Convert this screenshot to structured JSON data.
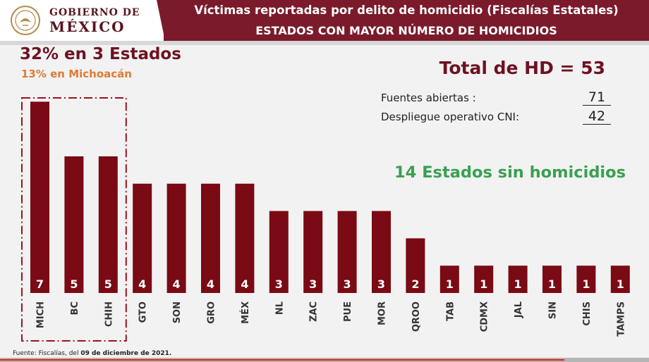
{
  "header": {
    "logo_line1": "GOBIERNO DE",
    "logo_line2": "MÉXICO",
    "title1": "Víctimas reportadas por delito de homicidio (Fiscalías Estatales)",
    "title2": "ESTADOS CON MAYOR NÚMERO DE HOMICIDIOS"
  },
  "summary": {
    "headline": "32% en 3 Estados",
    "subhead": "13% en Michoacán",
    "total": "Total de HD = 53",
    "sources": [
      {
        "label": "Fuentes abiertas :",
        "value": "71"
      },
      {
        "label": "Despliegue operativo CNI:",
        "value": "42"
      }
    ],
    "no_homicides": "14 Estados sin homicidios"
  },
  "chart_data": {
    "type": "bar",
    "categories": [
      "MICH",
      "BC",
      "CHIH",
      "GTO",
      "SON",
      "GRO",
      "MÉX",
      "NL",
      "ZAC",
      "PUE",
      "MOR",
      "QROO",
      "TAB",
      "CDMX",
      "JAL",
      "SIN",
      "CHIS",
      "TAMPS"
    ],
    "values": [
      7,
      5,
      5,
      4,
      4,
      4,
      4,
      3,
      3,
      3,
      3,
      2,
      1,
      1,
      1,
      1,
      1,
      1
    ],
    "highlighted_categories": [
      "MICH",
      "BC",
      "CHIH"
    ],
    "bar_color": "#7a0a14",
    "value_label_color": "#ffffff",
    "ylim": [
      0,
      7
    ]
  },
  "footer": {
    "prefix": "Fuente: Fiscalías, del ",
    "date": "09 de diciembre de 2021."
  },
  "colors": {
    "brand": "#7a1a2b",
    "headline": "#6e1222",
    "accent_orange": "#e07a32",
    "accent_green": "#3aa050"
  },
  "video": {
    "progress": 0.87
  }
}
